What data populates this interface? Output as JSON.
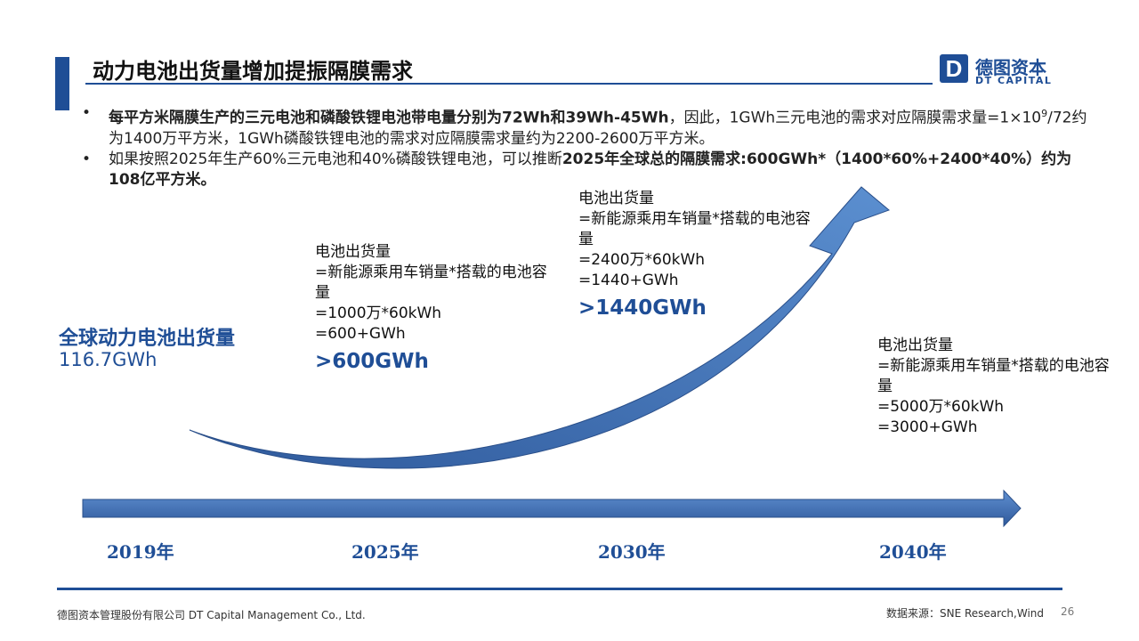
{
  "header": {
    "title": "动力电池出货量增加提振隔膜需求",
    "logo_letter": "D",
    "logo_cn": "德图资本",
    "logo_en": "DT CAPITAL"
  },
  "bullets": [
    {
      "bold": "每平方米隔膜生产的三元电池和磷酸铁锂电池带电量分别为72Wh和39Wh-45Wh",
      "text_a": "，因此，1GWh三元电池的需求对应隔膜需求量=1×10",
      "sup": "9",
      "text_b": "/72约为1400万平方米，1GWh磷酸铁锂电池的需求对应隔膜需求量约为2200-2600万平方米。"
    },
    {
      "text": "如果按照2025年生产60%三元电池和40%磷酸铁锂电池，可以推断",
      "bold": "2025年全球总的隔膜需求:600GWh*（1400*60%+2400*40%）约为108亿平方米。"
    }
  ],
  "global": {
    "title": "全球动力电池出货量",
    "value": "116.7GWh"
  },
  "blocks": [
    {
      "l1": "电池出货量",
      "l2": "=新能源乘用车销量*搭载的电池容",
      "l3": "量",
      "l4": "=1000万*60kWh",
      "l5": "=600+GWh",
      "big": ">600GWh"
    },
    {
      "l1": "电池出货量",
      "l2": "=新能源乘用车销量*搭载的电池容",
      "l3": "量",
      "l4": "=2400万*60kWh",
      "l5": "=1440+GWh",
      "big": ">1440GWh"
    },
    {
      "l1": "电池出货量",
      "l2": "=新能源乘用车销量*搭载的电池容",
      "l3": "量",
      "l4": "=5000万*60kWh",
      "l5": "=3000+GWh"
    }
  ],
  "timeline": {
    "years": [
      "2019年",
      "2025年",
      "2030年",
      "2040年"
    ]
  },
  "footer": {
    "company": "德图资本管理股份有限公司  DT Capital  Management  Co., Ltd.",
    "source": "数据来源：SNE Research,Wind",
    "page": "26"
  },
  "colors": {
    "brand": "#1f4e96",
    "arrow": "#4f7ec0"
  }
}
